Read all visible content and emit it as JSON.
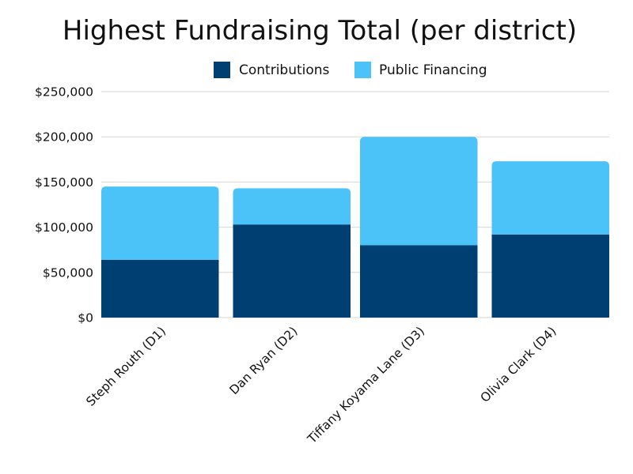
{
  "chart_data": {
    "type": "bar",
    "stacked": true,
    "title": "Highest Fundraising Total (per district)",
    "xlabel": "",
    "ylabel": "",
    "categories": [
      "Steph Routh (D1)",
      "Dan Ryan (D2)",
      "Tiffany Koyama Lane (D3)",
      "Olivia Clark (D4)"
    ],
    "series": [
      {
        "name": "Contributions",
        "color": "#003f72",
        "values": [
          64000,
          103000,
          80000,
          92000
        ]
      },
      {
        "name": "Public Financing",
        "color": "#4bc3f8",
        "values": [
          81000,
          40000,
          120000,
          81000
        ]
      }
    ],
    "ylim": [
      0,
      250000
    ],
    "yticks": [
      {
        "value": 0,
        "label": "$0"
      },
      {
        "value": 50000,
        "label": "$50,000"
      },
      {
        "value": 100000,
        "label": "$100,000"
      },
      {
        "value": 150000,
        "label": "$150,000"
      },
      {
        "value": 200000,
        "label": "$200,000"
      },
      {
        "value": 250000,
        "label": "$250,000"
      }
    ],
    "grid": true,
    "legend_position": "top"
  }
}
